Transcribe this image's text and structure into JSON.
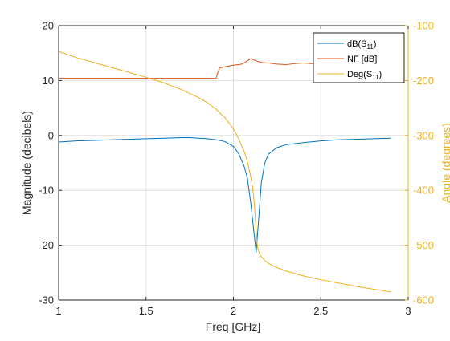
{
  "chart_data": {
    "type": "line",
    "xlabel": "Freq [GHz]",
    "ylabel_left": "Magnitude (decibels)",
    "ylabel_right": "Angle (degrees)",
    "xlim": [
      1,
      3
    ],
    "ylim_left": [
      -30,
      20
    ],
    "ylim_right": [
      -600,
      -100
    ],
    "xticks": [
      1,
      1.5,
      2,
      2.5,
      3
    ],
    "xtick_labels": [
      "1",
      "1.5",
      "2",
      "2.5",
      "3"
    ],
    "yticks_left": [
      -30,
      -20,
      -10,
      0,
      10,
      20
    ],
    "ytick_labels_left": [
      "-30",
      "-20",
      "-10",
      "0",
      "10",
      "20"
    ],
    "yticks_right": [
      -600,
      -500,
      -400,
      -300,
      -200,
      -100
    ],
    "ytick_labels_right": [
      "-600",
      "-500",
      "-400",
      "-300",
      "-200",
      "-100"
    ],
    "grid": true,
    "legend_position": "top-right",
    "colors": {
      "s11_db": "#0072BD",
      "nf": "#D95319",
      "s11_deg": "#EDB120",
      "axis": "#262626",
      "right_axis": "#EDB120",
      "grid": "#DFDFDF"
    },
    "series": [
      {
        "name": "dB(S11)",
        "legend_main": "dB(S",
        "legend_sub": "11",
        "legend_close": ")",
        "axis": "left",
        "color": "#0072BD",
        "x": [
          1.0,
          1.1,
          1.2,
          1.3,
          1.4,
          1.5,
          1.6,
          1.7,
          1.75,
          1.8,
          1.85,
          1.9,
          1.95,
          2.0,
          2.03,
          2.06,
          2.08,
          2.1,
          2.115,
          2.13,
          2.145,
          2.16,
          2.18,
          2.2,
          2.25,
          2.3,
          2.4,
          2.5,
          2.6,
          2.7,
          2.8,
          2.9
        ],
        "values": [
          -1.2,
          -1.0,
          -0.9,
          -0.8,
          -0.7,
          -0.6,
          -0.5,
          -0.4,
          -0.4,
          -0.5,
          -0.6,
          -0.8,
          -1.1,
          -2.0,
          -3.3,
          -5.5,
          -7.8,
          -12.5,
          -17.0,
          -21.3,
          -15.0,
          -8.5,
          -5.0,
          -3.4,
          -2.2,
          -1.7,
          -1.3,
          -1.0,
          -0.8,
          -0.7,
          -0.6,
          -0.5
        ]
      },
      {
        "name": "NF [dB]",
        "axis": "left",
        "color": "#D95319",
        "x": [
          1.0,
          1.2,
          1.4,
          1.6,
          1.8,
          1.9,
          1.92,
          1.95,
          2.0,
          2.05,
          2.08,
          2.1,
          2.13,
          2.16,
          2.2,
          2.25,
          2.3,
          2.35,
          2.4,
          2.45,
          2.5,
          2.55,
          2.6,
          2.65,
          2.7,
          2.75,
          2.8,
          2.85,
          2.9
        ],
        "values": [
          10.4,
          10.4,
          10.4,
          10.4,
          10.4,
          10.4,
          12.3,
          12.5,
          12.8,
          13.0,
          13.6,
          14.0,
          13.6,
          13.3,
          13.2,
          13.0,
          12.9,
          13.1,
          13.2,
          13.1,
          13.0,
          13.1,
          13.2,
          12.9,
          13.0,
          12.8,
          12.6,
          12.3,
          11.9
        ]
      },
      {
        "name": "Deg(S11)",
        "legend_main": "Deg(S",
        "legend_sub": "11",
        "legend_close": ")",
        "axis": "right",
        "color": "#EDB120",
        "x": [
          1.0,
          1.1,
          1.2,
          1.3,
          1.4,
          1.5,
          1.6,
          1.7,
          1.8,
          1.85,
          1.9,
          1.95,
          2.0,
          2.03,
          2.06,
          2.08,
          2.1,
          2.11,
          2.12,
          2.125,
          2.13,
          2.135,
          2.14,
          2.15,
          2.16,
          2.18,
          2.2,
          2.25,
          2.3,
          2.4,
          2.5,
          2.6,
          2.7,
          2.8,
          2.9
        ],
        "values": [
          -147,
          -158,
          -167,
          -176,
          -185,
          -194,
          -204,
          -216,
          -231,
          -240,
          -252,
          -267,
          -288,
          -306,
          -328,
          -348,
          -376,
          -395,
          -425,
          -450,
          -475,
          -495,
          -507,
          -516,
          -521,
          -528,
          -533,
          -541,
          -547,
          -556,
          -563,
          -569,
          -575,
          -580,
          -585
        ]
      }
    ]
  }
}
